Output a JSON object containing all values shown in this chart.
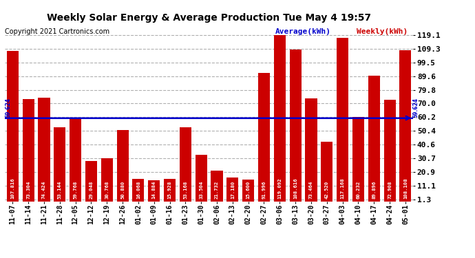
{
  "title": "Weekly Solar Energy & Average Production Tue May 4 19:57",
  "copyright": "Copyright 2021 Cartronics.com",
  "average_label": "Average(kWh)",
  "weekly_label": "Weekly(kWh)",
  "average_value": 59.624,
  "categories": [
    "11-07",
    "11-14",
    "11-21",
    "11-28",
    "12-05",
    "12-12",
    "12-19",
    "12-26",
    "01-02",
    "01-09",
    "01-16",
    "01-23",
    "01-30",
    "02-06",
    "02-13",
    "02-20",
    "02-27",
    "03-06",
    "03-13",
    "03-20",
    "03-27",
    "04-03",
    "04-10",
    "04-17",
    "04-24",
    "05-01"
  ],
  "values": [
    107.816,
    73.304,
    74.424,
    53.144,
    59.768,
    29.048,
    30.768,
    50.88,
    16.068,
    14.884,
    15.928,
    53.168,
    33.504,
    21.732,
    17.18,
    15.6,
    91.996,
    119.092,
    108.616,
    73.464,
    42.52,
    117.168,
    60.232,
    89.896,
    72.908,
    108.108
  ],
  "bar_color": "#cc0000",
  "avg_line_color": "#0000cc",
  "background_color": "#ffffff",
  "grid_color": "#b0b0b0",
  "title_color": "#000000",
  "copyright_color": "#000000",
  "avg_label_color": "#0000cc",
  "weekly_label_color": "#cc0000",
  "yticks": [
    1.3,
    11.1,
    20.9,
    30.7,
    40.6,
    50.4,
    60.2,
    70.0,
    79.8,
    89.6,
    99.5,
    109.3,
    119.1
  ],
  "ylim": [
    0,
    122
  ],
  "annotation_color": "#ffffff",
  "avg_annotation_color": "#0000cc",
  "value_labels": [
    "107.816",
    "73.304",
    "74.424",
    "53.144",
    "59.768",
    "29.048",
    "30.768",
    "50.880",
    "16.068",
    "14.884",
    "15.928",
    "53.168",
    "33.504",
    "21.732",
    "17.180",
    "15.600",
    "91.996",
    "119.092",
    "108.616",
    "73.464",
    "42.520",
    "117.168",
    "60.232",
    "89.896",
    "72.908",
    "108.108"
  ]
}
